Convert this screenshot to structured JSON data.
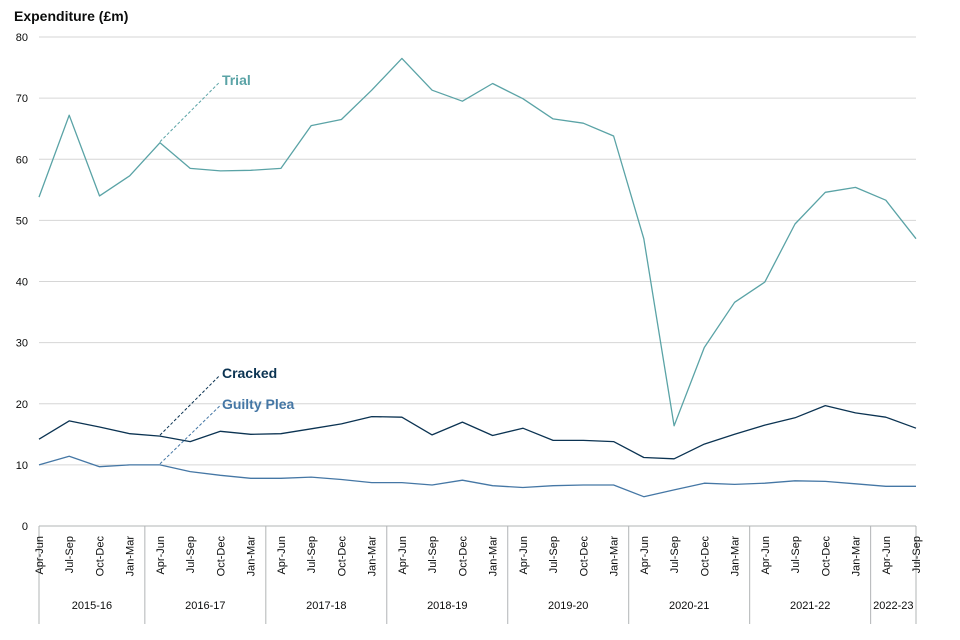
{
  "chart_data": {
    "type": "line",
    "ylabel": "Expenditure (£m)",
    "ylim": [
      0,
      80
    ],
    "yticks": [
      0,
      10,
      20,
      30,
      40,
      50,
      60,
      70,
      80
    ],
    "grid": true,
    "categories": [
      "Apr-Jun",
      "Jul-Sep",
      "Oct-Dec",
      "Jan-Mar",
      "Apr-Jun",
      "Jul-Sep",
      "Oct-Dec",
      "Jan-Mar",
      "Apr-Jun",
      "Jul-Sep",
      "Oct-Dec",
      "Jan-Mar",
      "Apr-Jun",
      "Jul-Sep",
      "Oct-Dec",
      "Jan-Mar",
      "Apr-Jun",
      "Jul-Sep",
      "Oct-Dec",
      "Jan-Mar",
      "Apr-Jun",
      "Jul-Sep",
      "Oct-Dec",
      "Jan-Mar",
      "Apr-Jun",
      "Jul-Sep",
      "Oct-Dec",
      "Jan-Mar",
      "Apr-Jun",
      "Jul-Sep"
    ],
    "groups": [
      {
        "label": "2015-16",
        "start": 0,
        "count": 4
      },
      {
        "label": "2016-17",
        "start": 4,
        "count": 4
      },
      {
        "label": "2017-18",
        "start": 8,
        "count": 4
      },
      {
        "label": "2018-19",
        "start": 12,
        "count": 4
      },
      {
        "label": "2019-20",
        "start": 16,
        "count": 4
      },
      {
        "label": "2020-21",
        "start": 20,
        "count": 4
      },
      {
        "label": "2021-22",
        "start": 24,
        "count": 4
      },
      {
        "label": "2022-23",
        "start": 28,
        "count": 2
      }
    ],
    "series": [
      {
        "name": "Trial",
        "color": "#5aa3a6",
        "label_index": 4,
        "label_value": 73,
        "values": [
          53.8,
          67.2,
          54.0,
          57.3,
          62.7,
          58.5,
          58.1,
          58.2,
          58.5,
          65.5,
          66.5,
          71.3,
          76.5,
          71.3,
          69.5,
          72.4,
          69.9,
          66.6,
          65.9,
          63.8,
          47.0,
          16.4,
          29.2,
          36.6,
          39.9,
          49.4,
          54.6,
          55.4,
          53.3,
          47.0
        ]
      },
      {
        "name": "Cracked",
        "color": "#0b3352",
        "label_index": 4,
        "label_value": 25,
        "values": [
          14.2,
          17.2,
          16.2,
          15.1,
          14.7,
          13.8,
          15.5,
          15.0,
          15.1,
          15.9,
          16.7,
          17.9,
          17.8,
          14.9,
          17.0,
          14.8,
          16.0,
          14.0,
          14.0,
          13.8,
          11.2,
          11.0,
          13.4,
          15.0,
          16.5,
          17.7,
          19.7,
          18.5,
          17.8,
          16.0
        ]
      },
      {
        "name": "Guilty Plea",
        "color": "#4577a5",
        "label_index": 4,
        "label_value": 20,
        "values": [
          10.0,
          11.4,
          9.7,
          10.0,
          10.0,
          8.9,
          8.3,
          7.8,
          7.8,
          8.0,
          7.6,
          7.1,
          7.1,
          6.7,
          7.5,
          6.6,
          6.3,
          6.6,
          6.7,
          6.7,
          4.8,
          5.9,
          7.0,
          6.8,
          7.0,
          7.4,
          7.3,
          6.9,
          6.5,
          6.5
        ]
      }
    ]
  }
}
